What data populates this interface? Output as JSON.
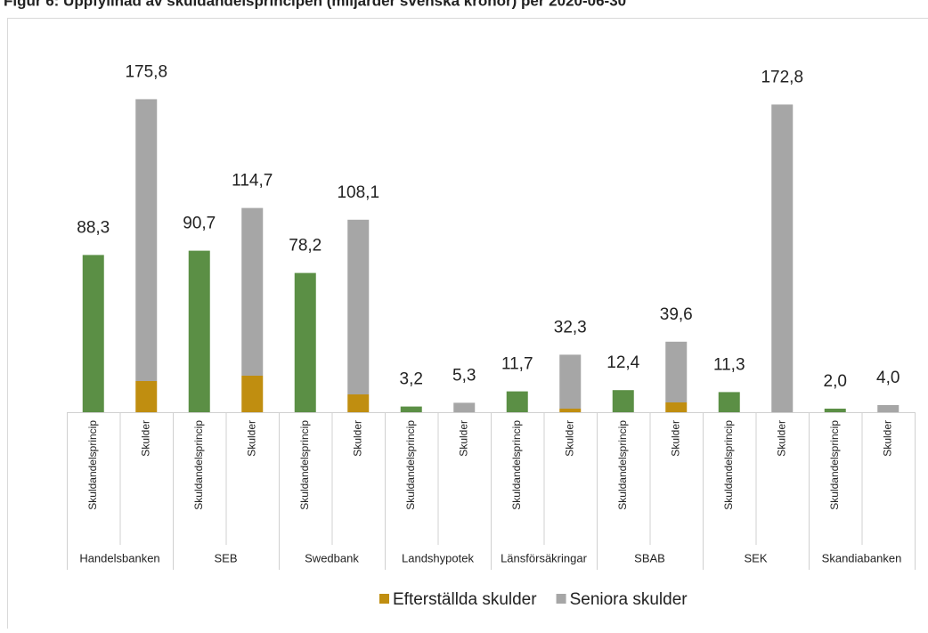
{
  "chart_data": {
    "type": "bar",
    "title": "Figur 6: Uppfyllnad av skuldandelsprincipen (miljarder svenska kronor) per 2020-06-30",
    "categories": [
      "Handelsbanken",
      "SEB",
      "Swedbank",
      "Landshypotek",
      "Länsförsäkringar",
      "SBAB",
      "SEK",
      "Skandiabanken"
    ],
    "subcategories": [
      "Skuldandelsprincip",
      "Skulder"
    ],
    "principle": {
      "color": "#5b8f45",
      "values": [
        88.3,
        90.7,
        78.2,
        3.2,
        11.7,
        12.4,
        11.3,
        2.0
      ],
      "value_labels": [
        "88,3",
        "90,7",
        "78,2",
        "3,2",
        "11,7",
        "12,4",
        "11,3",
        "2,0"
      ]
    },
    "series": [
      {
        "name": "Efterställda skulder",
        "color": "#c08e10",
        "values": [
          17.5,
          20.5,
          10.0,
          0,
          2.0,
          5.5,
          0,
          0
        ]
      },
      {
        "name": "Seniora skulder",
        "color": "#a6a6a6",
        "values": [
          158.3,
          94.2,
          98.1,
          5.3,
          30.3,
          34.1,
          172.8,
          4.0
        ]
      }
    ],
    "totals": [
      175.8,
      114.7,
      108.1,
      5.3,
      32.3,
      39.6,
      172.8,
      4.0
    ],
    "total_labels": [
      "175,8",
      "114,7",
      "108,1",
      "5,3",
      "32,3",
      "39,6",
      "172,8",
      "4,0"
    ],
    "ylim": [
      0,
      200
    ],
    "legend": "bottom"
  }
}
